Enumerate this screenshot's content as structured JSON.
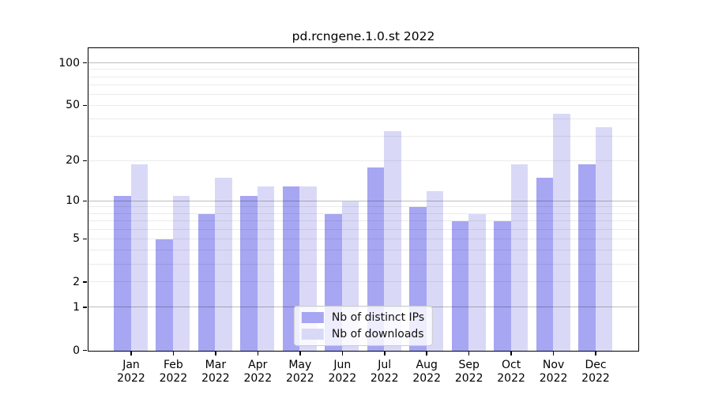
{
  "chart_data": {
    "type": "bar",
    "title": "pd.rcngene.1.0.st 2022",
    "categories": [
      "Jan",
      "Feb",
      "Mar",
      "Apr",
      "May",
      "Jun",
      "Jul",
      "Aug",
      "Sep",
      "Oct",
      "Nov",
      "Dec"
    ],
    "x_tick_year": "2022",
    "series": [
      {
        "name": "Nb of distinct IPs",
        "color": "#a6a6f2",
        "values": [
          11,
          5,
          8,
          11,
          13,
          8,
          18,
          9,
          7,
          7,
          15,
          19
        ]
      },
      {
        "name": "Nb of downloads",
        "color": "#d9d9f7",
        "values": [
          19,
          11,
          15,
          13,
          13,
          10,
          33,
          12,
          8,
          19,
          44,
          35
        ]
      }
    ],
    "xlabel": "",
    "ylabel": "",
    "yscale": "log1p",
    "ylim": [
      0,
      126
    ],
    "yticks": [
      0,
      1,
      2,
      5,
      10,
      20,
      50,
      100
    ],
    "major_gridlines": [
      1,
      10,
      100
    ],
    "minor_gridlines": [
      2,
      3,
      4,
      5,
      6,
      7,
      8,
      9,
      20,
      30,
      40,
      50,
      60,
      70,
      80,
      90
    ],
    "grid": "both",
    "legend_position": "lower center"
  }
}
